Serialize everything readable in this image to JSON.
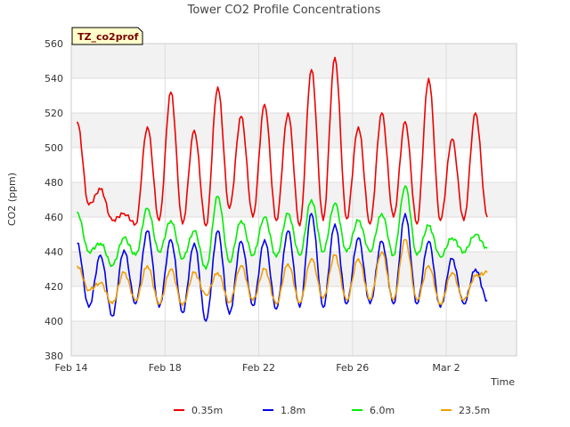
{
  "chart_data": {
    "type": "line",
    "title": "Tower CO2 Profile Concentrations",
    "tag": "TZ_co2prof",
    "xlabel": "Time",
    "ylabel": "CO2 (ppm)",
    "ylim": [
      380,
      560
    ],
    "yticks": [
      380,
      400,
      420,
      440,
      460,
      480,
      500,
      520,
      540,
      560
    ],
    "xlim": [
      "2018-02-14",
      "2018-03-05"
    ],
    "xticks": [
      {
        "date": "2018-02-14",
        "label": "Feb 14"
      },
      {
        "date": "2018-02-18",
        "label": "Feb 18"
      },
      {
        "date": "2018-02-22",
        "label": "Feb 22"
      },
      {
        "date": "2018-02-26",
        "label": "Feb 26"
      },
      {
        "date": "2018-03-02",
        "label": "Mar 2"
      }
    ],
    "grid": true,
    "banded_background": true,
    "legend_position": "bottom",
    "series": [
      {
        "name": "0.35m",
        "color": "#ee0000",
        "x": [
          "2018-02-14 06:00",
          "2018-02-14 18:00",
          "2018-02-15 06:00",
          "2018-02-15 18:00",
          "2018-02-16 06:00",
          "2018-02-16 18:00",
          "2018-02-17 06:00",
          "2018-02-17 18:00",
          "2018-02-18 06:00",
          "2018-02-18 18:00",
          "2018-02-19 06:00",
          "2018-02-19 18:00",
          "2018-02-20 06:00",
          "2018-02-20 18:00",
          "2018-02-21 06:00",
          "2018-02-21 18:00",
          "2018-02-22 06:00",
          "2018-02-22 18:00",
          "2018-02-23 06:00",
          "2018-02-23 18:00",
          "2018-02-24 06:00",
          "2018-02-24 18:00",
          "2018-02-25 06:00",
          "2018-02-25 18:00",
          "2018-02-26 06:00",
          "2018-02-26 18:00",
          "2018-02-27 06:00",
          "2018-02-27 18:00",
          "2018-02-28 06:00",
          "2018-02-28 18:00",
          "2018-03-01 06:00",
          "2018-03-01 18:00",
          "2018-03-02 06:00",
          "2018-03-02 18:00",
          "2018-03-03 06:00",
          "2018-03-03 18:00"
        ],
        "y": [
          515,
          467,
          476,
          458,
          462,
          456,
          512,
          458,
          532,
          456,
          510,
          455,
          535,
          465,
          518,
          460,
          525,
          458,
          520,
          455,
          545,
          458,
          552,
          459,
          512,
          456,
          520,
          460,
          515,
          456,
          540,
          458,
          505,
          458,
          520,
          460
        ]
      },
      {
        "name": "1.8m",
        "color": "#0000ee",
        "x": [
          "2018-02-14 06:00",
          "2018-02-14 18:00",
          "2018-02-15 06:00",
          "2018-02-15 18:00",
          "2018-02-16 06:00",
          "2018-02-16 18:00",
          "2018-02-17 06:00",
          "2018-02-17 18:00",
          "2018-02-18 06:00",
          "2018-02-18 18:00",
          "2018-02-19 06:00",
          "2018-02-19 18:00",
          "2018-02-20 06:00",
          "2018-02-20 18:00",
          "2018-02-21 06:00",
          "2018-02-21 18:00",
          "2018-02-22 06:00",
          "2018-02-22 18:00",
          "2018-02-23 06:00",
          "2018-02-23 18:00",
          "2018-02-24 06:00",
          "2018-02-24 18:00",
          "2018-02-25 06:00",
          "2018-02-25 18:00",
          "2018-02-26 06:00",
          "2018-02-26 18:00",
          "2018-02-27 06:00",
          "2018-02-27 18:00",
          "2018-02-28 06:00",
          "2018-02-28 18:00",
          "2018-03-01 06:00",
          "2018-03-01 18:00",
          "2018-03-02 06:00",
          "2018-03-02 18:00",
          "2018-03-03 06:00",
          "2018-03-03 18:00"
        ],
        "y": [
          445,
          408,
          438,
          403,
          441,
          410,
          452,
          408,
          447,
          405,
          445,
          400,
          452,
          404,
          446,
          409,
          447,
          407,
          452,
          408,
          462,
          408,
          456,
          410,
          448,
          410,
          446,
          410,
          462,
          410,
          446,
          408,
          436,
          410,
          430,
          412
        ]
      },
      {
        "name": "6.0m",
        "color": "#00ee00",
        "x": [
          "2018-02-14 06:00",
          "2018-02-14 18:00",
          "2018-02-15 06:00",
          "2018-02-15 18:00",
          "2018-02-16 06:00",
          "2018-02-16 18:00",
          "2018-02-17 06:00",
          "2018-02-17 18:00",
          "2018-02-18 06:00",
          "2018-02-18 18:00",
          "2018-02-19 06:00",
          "2018-02-19 18:00",
          "2018-02-20 06:00",
          "2018-02-20 18:00",
          "2018-02-21 06:00",
          "2018-02-21 18:00",
          "2018-02-22 06:00",
          "2018-02-22 18:00",
          "2018-02-23 06:00",
          "2018-02-23 18:00",
          "2018-02-24 06:00",
          "2018-02-24 18:00",
          "2018-02-25 06:00",
          "2018-02-25 18:00",
          "2018-02-26 06:00",
          "2018-02-26 18:00",
          "2018-02-27 06:00",
          "2018-02-27 18:00",
          "2018-02-28 06:00",
          "2018-02-28 18:00",
          "2018-03-01 06:00",
          "2018-03-01 18:00",
          "2018-03-02 06:00",
          "2018-03-02 18:00",
          "2018-03-03 06:00",
          "2018-03-03 18:00"
        ],
        "y": [
          463,
          440,
          445,
          432,
          448,
          438,
          465,
          440,
          458,
          436,
          452,
          430,
          472,
          434,
          458,
          438,
          460,
          437,
          462,
          438,
          470,
          440,
          468,
          440,
          458,
          440,
          462,
          438,
          478,
          438,
          455,
          437,
          448,
          440,
          450,
          442
        ]
      },
      {
        "name": "23.5m",
        "color": "#f0a000",
        "x": [
          "2018-02-14 06:00",
          "2018-02-14 18:00",
          "2018-02-15 06:00",
          "2018-02-15 18:00",
          "2018-02-16 06:00",
          "2018-02-16 18:00",
          "2018-02-17 06:00",
          "2018-02-17 18:00",
          "2018-02-18 06:00",
          "2018-02-18 18:00",
          "2018-02-19 06:00",
          "2018-02-19 18:00",
          "2018-02-20 06:00",
          "2018-02-20 18:00",
          "2018-02-21 06:00",
          "2018-02-21 18:00",
          "2018-02-22 06:00",
          "2018-02-22 18:00",
          "2018-02-23 06:00",
          "2018-02-23 18:00",
          "2018-02-24 06:00",
          "2018-02-24 18:00",
          "2018-02-25 06:00",
          "2018-02-25 18:00",
          "2018-02-26 06:00",
          "2018-02-26 18:00",
          "2018-02-27 06:00",
          "2018-02-27 18:00",
          "2018-02-28 06:00",
          "2018-02-28 18:00",
          "2018-03-01 06:00",
          "2018-03-01 18:00",
          "2018-03-02 06:00",
          "2018-03-02 18:00",
          "2018-03-03 06:00",
          "2018-03-03 18:00"
        ],
        "y": [
          432,
          418,
          422,
          410,
          428,
          412,
          432,
          410,
          430,
          409,
          428,
          415,
          428,
          411,
          432,
          412,
          430,
          410,
          433,
          411,
          436,
          413,
          438,
          412,
          436,
          413,
          440,
          412,
          447,
          412,
          432,
          410,
          428,
          412,
          426,
          428
        ]
      }
    ]
  }
}
